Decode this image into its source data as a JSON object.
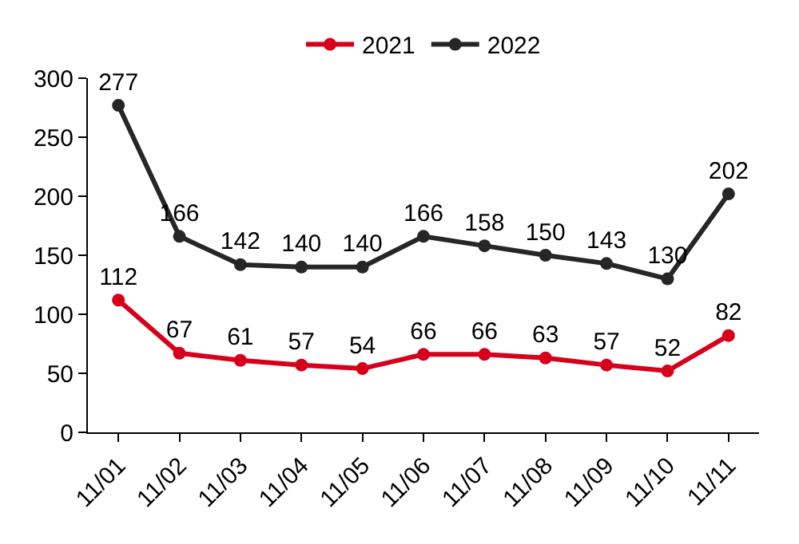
{
  "chart_data": {
    "type": "line",
    "categories": [
      "11/01",
      "11/02",
      "11/03",
      "11/04",
      "11/05",
      "11/06",
      "11/07",
      "11/08",
      "11/09",
      "11/10",
      "11/11"
    ],
    "series": [
      {
        "name": "2021",
        "color": "#d7001b",
        "values": [
          112,
          67,
          61,
          57,
          54,
          66,
          66,
          63,
          57,
          52,
          82
        ]
      },
      {
        "name": "2022",
        "color": "#262626",
        "values": [
          277,
          166,
          142,
          140,
          140,
          166,
          158,
          150,
          143,
          130,
          202
        ]
      }
    ],
    "ylim": [
      0,
      300
    ],
    "yticks": [
      0,
      50,
      100,
      150,
      200,
      250,
      300
    ],
    "grid": false,
    "legend": "top",
    "marker": "circle",
    "line_style": "solid",
    "data_labels": true
  }
}
